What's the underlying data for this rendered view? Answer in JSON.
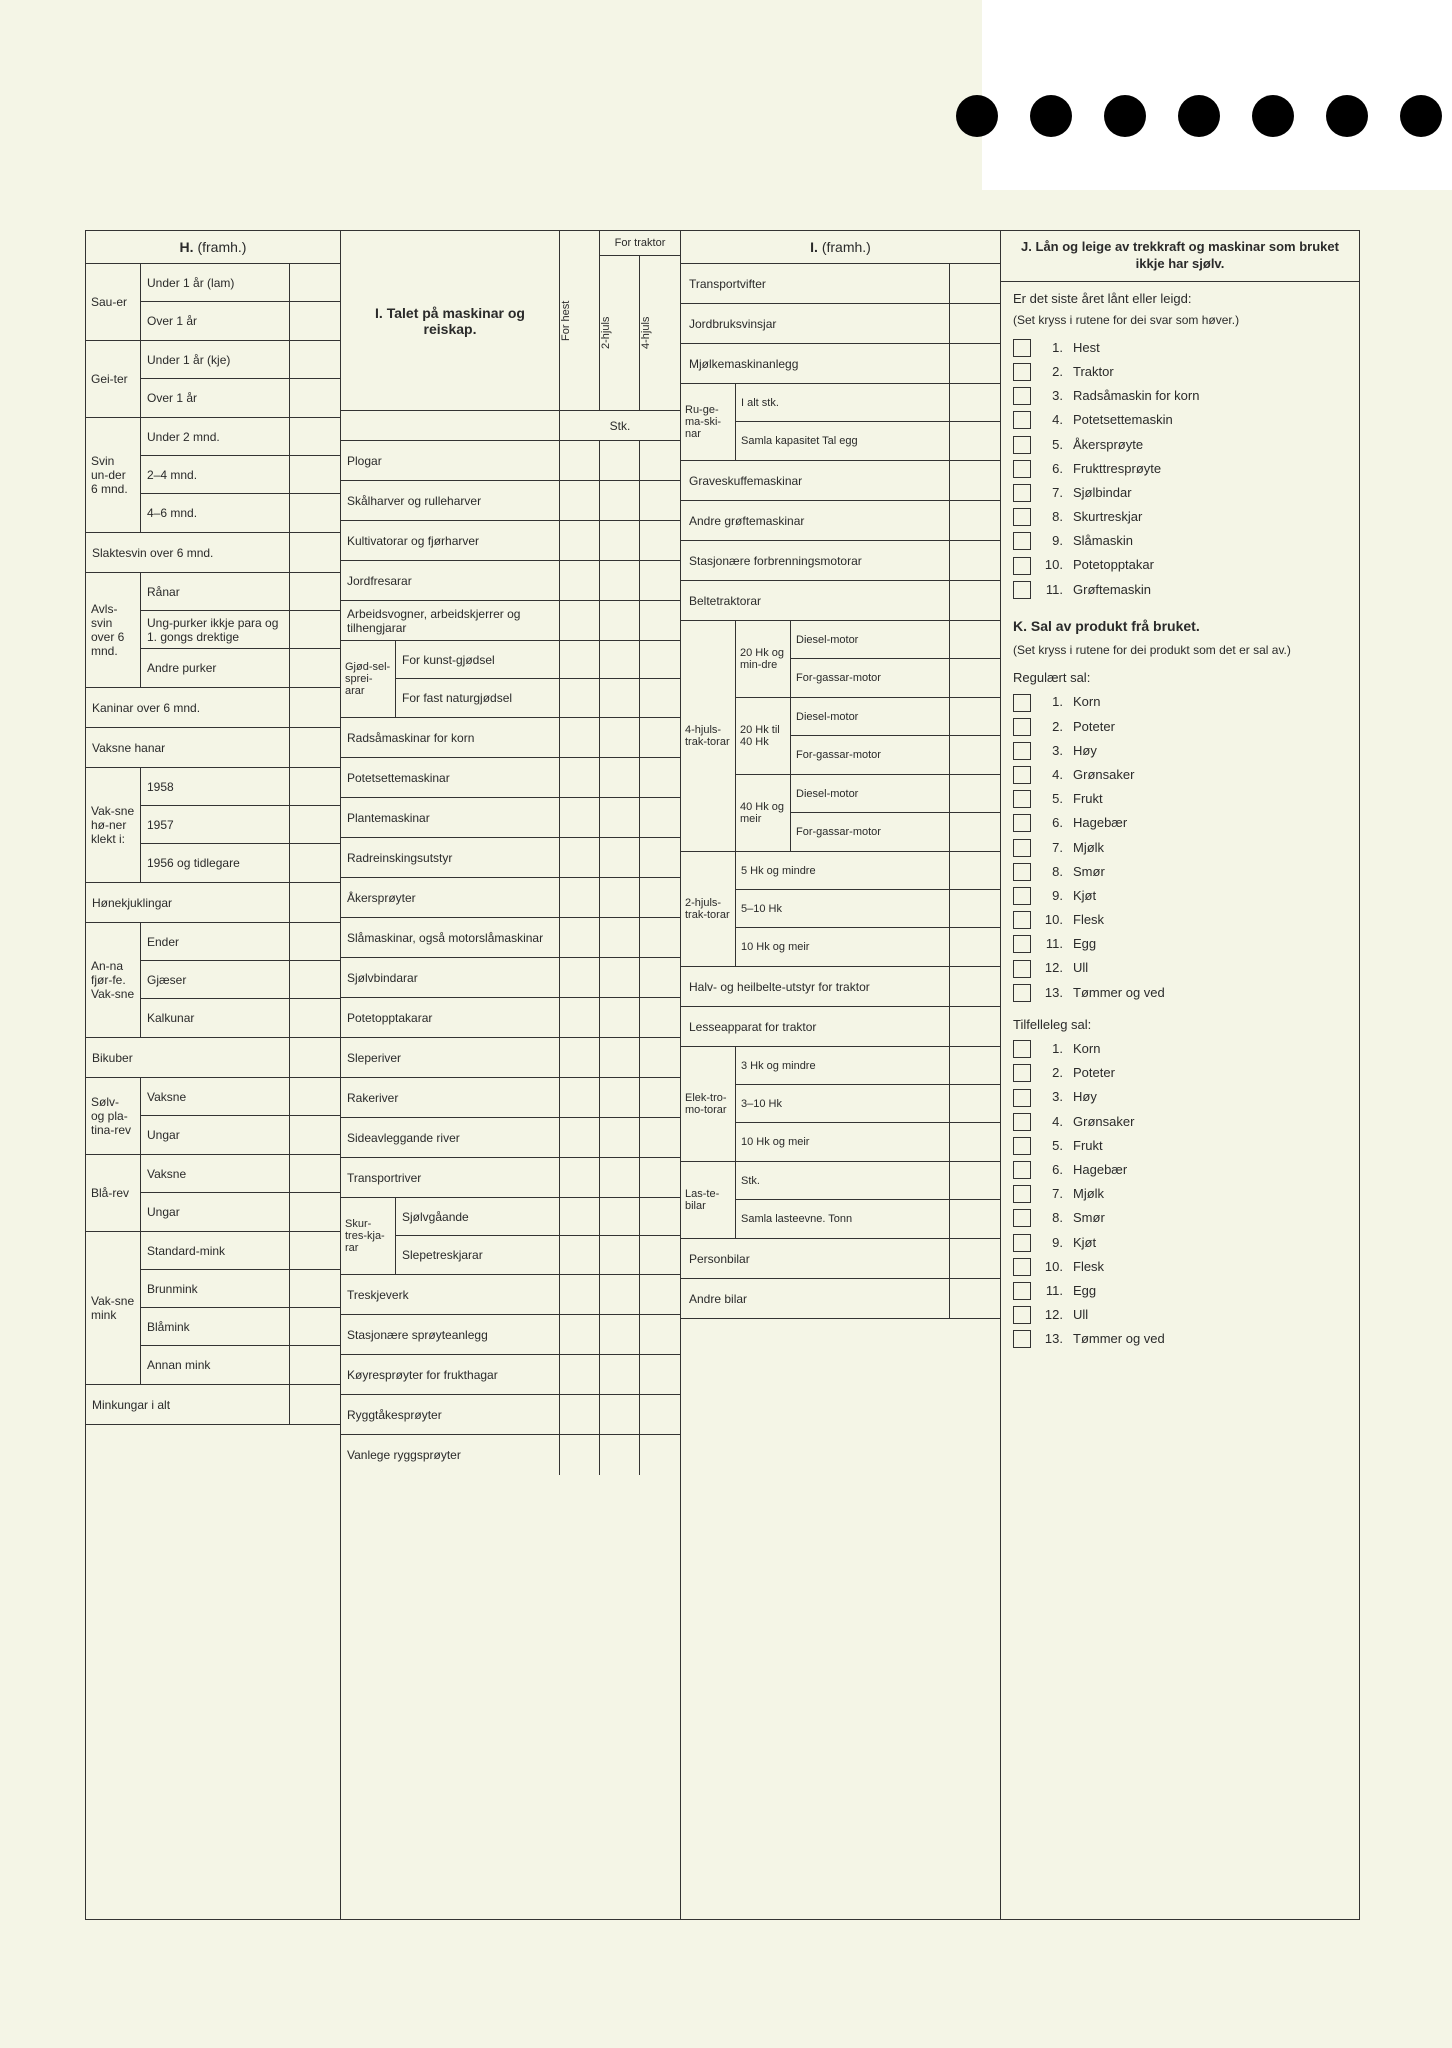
{
  "colors": {
    "page_bg": "#f4f5e6",
    "line": "#333333",
    "text": "#2a2a2a",
    "hole": "#000000"
  },
  "punch_hole_count": 7,
  "H": {
    "title": "H.",
    "title_suffix": "(framh.)",
    "groups": [
      {
        "label": "Sau-er",
        "rows": [
          "Under 1 år (lam)",
          "Over 1 år"
        ]
      },
      {
        "label": "Gei-ter",
        "rows": [
          "Under 1 år (kje)",
          "Over 1 år"
        ]
      },
      {
        "label": "Svin un-der 6 mnd.",
        "rows": [
          "Under 2 mnd.",
          "2–4 mnd.",
          "4–6 mnd."
        ]
      }
    ],
    "single_rows_1": [
      "Slaktesvin over 6 mnd."
    ],
    "avlssvin": {
      "label": "Avls-svin over 6 mnd.",
      "rows": [
        "Rånar",
        "Ung-purker ikkje para og 1. gongs drektige",
        "Andre purker"
      ]
    },
    "single_rows_2": [
      "Kaninar over 6 mnd.",
      "Vaksne hanar"
    ],
    "honer": {
      "label": "Vak-sne hø-ner klekt i:",
      "rows": [
        "1958",
        "1957",
        "1956 og tidlegare"
      ]
    },
    "single_rows_3": [
      "Hønekjuklingar"
    ],
    "fjorfe": {
      "label": "An-na fjør-fe. Vak-sne",
      "rows": [
        "Ender",
        "Gjæser",
        "Kalkunar"
      ]
    },
    "single_rows_4": [
      "Bikuber"
    ],
    "solv": {
      "label": "Sølv- og pla-tina-rev",
      "rows": [
        "Vaksne",
        "Ungar"
      ]
    },
    "blaa": {
      "label": "Blå-rev",
      "rows": [
        "Vaksne",
        "Ungar"
      ]
    },
    "mink": {
      "label": "Vak-sne mink",
      "rows": [
        "Standard-mink",
        "Brunmink",
        "Blåmink",
        "Annan mink"
      ]
    },
    "single_rows_5": [
      "Minkungar i alt"
    ]
  },
  "I1": {
    "title": "I. Talet på maskinar og reiskap.",
    "col_forhest": "For hest",
    "col_fortraktor": "For traktor",
    "col_2hjuls": "2-hjuls",
    "col_4hjuls": "4-hjuls",
    "stk": "Stk.",
    "rows_simple": [
      "Plogar",
      "Skålharver og rulleharver",
      "Kultivatorar og fjørharver",
      "Jordfresarar"
    ],
    "arbeidsvogner": "Arbeidsvogner, arbeidskjerrer og tilhengjarar",
    "gjodsel": {
      "label": "Gjød-sel-sprei-arar",
      "rows": [
        "For kunst-gjødsel",
        "For fast naturgjødsel"
      ]
    },
    "rows_simple2": [
      "Radsåmaskinar for korn",
      "Potetsettemaskinar",
      "Plantemaskinar",
      "Radreinskingsutstyr",
      "Åkersprøyter",
      "Slåmaskinar, også motorslåmaskinar",
      "Sjølvbindarar",
      "Potetopptakarar",
      "Sleperiver",
      "Rakeriver",
      "Sideavleggande river",
      "Transportriver"
    ],
    "skur": {
      "label": "Skur-tres-kja-rar",
      "rows": [
        "Sjølvgåande",
        "Slepetreskjarar"
      ]
    },
    "rows_simple3": [
      "Treskjeverk",
      "Stasjonære sprøyteanlegg",
      "Køyresprøyter for frukthagar",
      "Ryggtåkesprøyter",
      "Vanlege ryggsprøyter"
    ]
  },
  "I2": {
    "title": "I.",
    "title_suffix": "(framh.)",
    "rows_top": [
      "Transportvifter",
      "Jordbruksvinsjar",
      "Mjølkemaskinanlegg"
    ],
    "ruge": {
      "label": "Ru-ge-ma-ski-nar",
      "rows": [
        "I alt stk.",
        "Samla kapasitet Tal egg"
      ]
    },
    "rows_mid": [
      "Graveskuffemaskinar",
      "Andre grøftemaskinar",
      "Stasjonære forbrenningsmotorar",
      "Beltetraktorar"
    ],
    "traktor4": {
      "label": "4-hjuls-trak-torar",
      "groups": [
        {
          "hk": "20 Hk og min-dre",
          "rows": [
            "Diesel-motor",
            "For-gassar-motor"
          ]
        },
        {
          "hk": "20 Hk til 40 Hk",
          "rows": [
            "Diesel-motor",
            "For-gassar-motor"
          ]
        },
        {
          "hk": "40 Hk og meir",
          "rows": [
            "Diesel-motor",
            "For-gassar-motor"
          ]
        }
      ]
    },
    "traktor2": {
      "label": "2-hjuls-trak-torar",
      "rows": [
        "5 Hk og mindre",
        "5–10 Hk",
        "10 Hk og meir"
      ]
    },
    "rows_mid2": [
      "Halv- og heilbelte-utstyr for traktor",
      "Lesseapparat for traktor"
    ],
    "elektro": {
      "label": "Elek-tro-mo-torar",
      "rows": [
        "3 Hk og mindre",
        "3–10 Hk",
        "10 Hk og meir"
      ]
    },
    "laste": {
      "label": "Las-te-bilar",
      "rows": [
        "Stk.",
        "Samla lasteevne. Tonn"
      ]
    },
    "rows_bot": [
      "Personbilar",
      "Andre bilar"
    ]
  },
  "J": {
    "title": "J. Lån og leige av trekkraft og maskinar som bruket ikkje har sjølv.",
    "lead": "Er det siste året lånt eller leigd:",
    "hint": "(Set kryss i rutene for dei svar som høver.)",
    "items": [
      "Hest",
      "Traktor",
      "Radsåmaskin for korn",
      "Potetsettemaskin",
      "Åkersprøyte",
      "Frukttresprøyte",
      "Sjølbindar",
      "Skurtreskjar",
      "Slåmaskin",
      "Potetopptakar",
      "Grøftemaskin"
    ]
  },
  "K": {
    "title": "K. Sal av produkt frå bruket.",
    "hint": "(Set kryss i rutene for dei produkt som det er sal av.)",
    "reg_label": "Regulært sal:",
    "reg_items": [
      "Korn",
      "Poteter",
      "Høy",
      "Grønsaker",
      "Frukt",
      "Hagebær",
      "Mjølk",
      "Smør",
      "Kjøt",
      "Flesk",
      "Egg",
      "Ull",
      "Tømmer og ved"
    ],
    "tilf_label": "Tilfelleleg sal:",
    "tilf_items": [
      "Korn",
      "Poteter",
      "Høy",
      "Grønsaker",
      "Frukt",
      "Hagebær",
      "Mjølk",
      "Smør",
      "Kjøt",
      "Flesk",
      "Egg",
      "Ull",
      "Tømmer og ved"
    ]
  }
}
